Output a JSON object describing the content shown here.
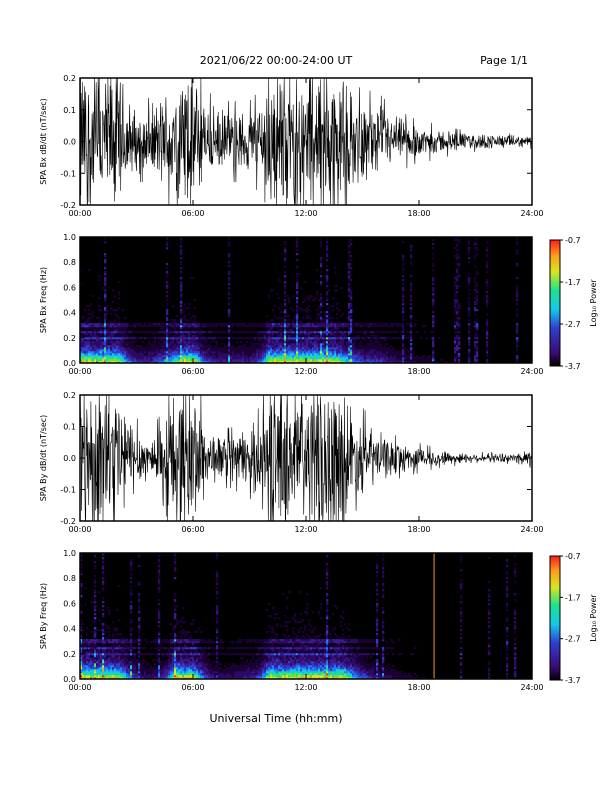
{
  "header": {
    "date_range": "2021/06/22  00:00-24:00 UT",
    "page": "Page 1/1"
  },
  "footer": {
    "xlabel": "Universal Time (hh:mm)"
  },
  "colorbar": {
    "ticks": [
      "-0.7",
      "-1.7",
      "-2.7",
      "-3.7"
    ],
    "label": "Log₁₀ Power"
  },
  "chart_data": [
    {
      "type": "line",
      "ylabel": "SPA Bx dB/dt (nT/sec)",
      "xlim": [
        0,
        24
      ],
      "ylim": [
        -0.2,
        0.2
      ],
      "x_ticks": [
        "00:00",
        "06:00",
        "12:00",
        "18:00",
        "24:00"
      ],
      "y_ticks": [
        "0.2",
        "0.1",
        "0.0",
        "-0.1",
        "-0.2"
      ],
      "envelope": {
        "x_hours": [
          0,
          0.5,
          1,
          1.5,
          2,
          2.5,
          3,
          3.5,
          4,
          4.5,
          5,
          5.5,
          6,
          6.5,
          7,
          7.5,
          8,
          8.5,
          9,
          9.5,
          10,
          10.5,
          11,
          11.5,
          12,
          12.5,
          13,
          13.5,
          14,
          14.5,
          15,
          15.5,
          16,
          16.5,
          17,
          17.5,
          18,
          18.5,
          19,
          19.5,
          20,
          21,
          22,
          23,
          24
        ],
        "amplitude": [
          0.2,
          0.2,
          0.2,
          0.2,
          0.2,
          0.12,
          0.08,
          0.08,
          0.1,
          0.13,
          0.16,
          0.2,
          0.2,
          0.12,
          0.09,
          0.08,
          0.08,
          0.08,
          0.08,
          0.1,
          0.2,
          0.2,
          0.2,
          0.2,
          0.2,
          0.2,
          0.2,
          0.2,
          0.16,
          0.12,
          0.1,
          0.1,
          0.09,
          0.07,
          0.06,
          0.05,
          0.04,
          0.04,
          0.03,
          0.03,
          0.025,
          0.02,
          0.02,
          0.015,
          0.015
        ]
      }
    },
    {
      "type": "heatmap",
      "ylabel": "SPA Bx Freq (Hz)",
      "xlim": [
        0,
        24
      ],
      "ylim": [
        0,
        1.0
      ],
      "x_ticks": [
        "00:00",
        "06:00",
        "12:00",
        "18:00",
        "24:00"
      ],
      "y_ticks": [
        "1.0",
        "0.8",
        "0.6",
        "0.4",
        "0.2",
        "0.0"
      ],
      "color_range": [
        -3.7,
        -0.7
      ]
    },
    {
      "type": "line",
      "ylabel": "SPA By dB/dt (nT/sec)",
      "xlim": [
        0,
        24
      ],
      "ylim": [
        -0.2,
        0.2
      ],
      "x_ticks": [
        "00:00",
        "06:00",
        "12:00",
        "18:00",
        "24:00"
      ],
      "y_ticks": [
        "0.2",
        "0.1",
        "0.0",
        "-0.1",
        "-0.2"
      ],
      "envelope": {
        "x_hours": [
          0,
          0.5,
          1,
          1.5,
          2,
          2.5,
          3,
          3.5,
          4,
          4.5,
          5,
          5.5,
          6,
          6.5,
          7,
          7.5,
          8,
          8.5,
          9,
          9.5,
          10,
          10.5,
          11,
          11.5,
          12,
          12.5,
          13,
          13.5,
          14,
          14.5,
          15,
          15.5,
          16,
          16.5,
          17,
          17.5,
          18,
          18.5,
          19,
          19.5,
          20,
          21,
          22,
          23,
          24
        ],
        "amplitude": [
          0.2,
          0.2,
          0.2,
          0.2,
          0.2,
          0.13,
          0.08,
          0.06,
          0.07,
          0.1,
          0.2,
          0.2,
          0.2,
          0.12,
          0.07,
          0.06,
          0.06,
          0.07,
          0.08,
          0.1,
          0.2,
          0.2,
          0.2,
          0.2,
          0.2,
          0.2,
          0.2,
          0.2,
          0.2,
          0.14,
          0.1,
          0.08,
          0.06,
          0.05,
          0.04,
          0.035,
          0.03,
          0.025,
          0.02,
          0.02,
          0.015,
          0.012,
          0.012,
          0.012,
          0.03
        ]
      }
    },
    {
      "type": "heatmap",
      "ylabel": "SPA By Freq (Hz)",
      "xlim": [
        0,
        24
      ],
      "ylim": [
        0,
        1.0
      ],
      "x_ticks": [
        "00:00",
        "06:00",
        "12:00",
        "18:00",
        "24:00"
      ],
      "y_ticks": [
        "1.0",
        "0.8",
        "0.6",
        "0.4",
        "0.2",
        "0.0"
      ],
      "color_range": [
        -3.7,
        -0.7
      ]
    }
  ]
}
